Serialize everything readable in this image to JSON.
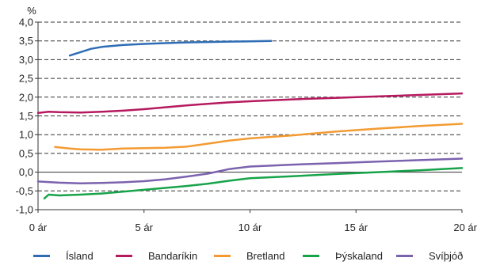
{
  "chart_data": {
    "type": "line",
    "y_unit_label": "%",
    "xlim": [
      0,
      20
    ],
    "ylim": [
      -1.0,
      4.0
    ],
    "x_ticks": [
      {
        "value": 0,
        "label": "0 ár"
      },
      {
        "value": 5,
        "label": "5 ár"
      },
      {
        "value": 10,
        "label": "10 ár"
      },
      {
        "value": 15,
        "label": "15 ár"
      },
      {
        "value": 20,
        "label": "20 ár"
      }
    ],
    "y_ticks": [
      {
        "value": -1.0,
        "label": "-1,0"
      },
      {
        "value": -0.5,
        "label": "-0,5"
      },
      {
        "value": 0.0,
        "label": "0,0"
      },
      {
        "value": 0.5,
        "label": "0,5"
      },
      {
        "value": 1.0,
        "label": "1,0"
      },
      {
        "value": 1.5,
        "label": "1,5"
      },
      {
        "value": 2.0,
        "label": "2,0"
      },
      {
        "value": 2.5,
        "label": "2,5"
      },
      {
        "value": 3.0,
        "label": "3,0"
      },
      {
        "value": 3.5,
        "label": "3,5"
      },
      {
        "value": 4.0,
        "label": "4,0"
      }
    ],
    "grid": "horizontal dashed",
    "legend_position": "bottom",
    "series": [
      {
        "name": "Ísland",
        "color": "#2e6db5",
        "points": [
          [
            1.5,
            3.11
          ],
          [
            2.0,
            3.2
          ],
          [
            2.5,
            3.29
          ],
          [
            3.0,
            3.34
          ],
          [
            4.0,
            3.39
          ],
          [
            5.0,
            3.42
          ],
          [
            6.0,
            3.44
          ],
          [
            7.0,
            3.46
          ],
          [
            8.0,
            3.47
          ],
          [
            9.0,
            3.48
          ],
          [
            10.0,
            3.49
          ],
          [
            11.0,
            3.5
          ]
        ]
      },
      {
        "name": "Bandaríkin",
        "color": "#b5195e",
        "points": [
          [
            0.0,
            1.58
          ],
          [
            0.5,
            1.61
          ],
          [
            1.0,
            1.6
          ],
          [
            2.0,
            1.59
          ],
          [
            3.0,
            1.61
          ],
          [
            4.0,
            1.64
          ],
          [
            5.0,
            1.68
          ],
          [
            6.0,
            1.73
          ],
          [
            7.0,
            1.78
          ],
          [
            8.0,
            1.82
          ],
          [
            9.0,
            1.86
          ],
          [
            10.0,
            1.89
          ],
          [
            12.0,
            1.94
          ],
          [
            14.0,
            1.98
          ],
          [
            16.0,
            2.02
          ],
          [
            18.0,
            2.06
          ],
          [
            20.0,
            2.1
          ]
        ]
      },
      {
        "name": "Bretland",
        "color": "#f39b32",
        "points": [
          [
            0.8,
            0.67
          ],
          [
            1.5,
            0.63
          ],
          [
            2.0,
            0.61
          ],
          [
            3.0,
            0.6
          ],
          [
            4.0,
            0.63
          ],
          [
            5.0,
            0.64
          ],
          [
            6.0,
            0.65
          ],
          [
            7.0,
            0.68
          ],
          [
            8.0,
            0.76
          ],
          [
            9.0,
            0.84
          ],
          [
            10.0,
            0.9
          ],
          [
            12.0,
            0.98
          ],
          [
            14.0,
            1.08
          ],
          [
            16.0,
            1.16
          ],
          [
            18.0,
            1.23
          ],
          [
            20.0,
            1.29
          ]
        ]
      },
      {
        "name": "Þýskaland",
        "color": "#17a34a",
        "points": [
          [
            0.3,
            -0.7
          ],
          [
            0.5,
            -0.6
          ],
          [
            1.0,
            -0.62
          ],
          [
            2.0,
            -0.6
          ],
          [
            3.0,
            -0.57
          ],
          [
            4.0,
            -0.52
          ],
          [
            5.0,
            -0.47
          ],
          [
            6.0,
            -0.42
          ],
          [
            7.0,
            -0.37
          ],
          [
            8.0,
            -0.31
          ],
          [
            9.0,
            -0.23
          ],
          [
            10.0,
            -0.16
          ],
          [
            12.0,
            -0.11
          ],
          [
            14.0,
            -0.05
          ],
          [
            16.0,
            0.0
          ],
          [
            18.0,
            0.05
          ],
          [
            20.0,
            0.11
          ]
        ]
      },
      {
        "name": "Svíþjóð",
        "color": "#7b62ae",
        "points": [
          [
            0.0,
            -0.25
          ],
          [
            1.0,
            -0.28
          ],
          [
            2.0,
            -0.3
          ],
          [
            3.0,
            -0.29
          ],
          [
            4.0,
            -0.27
          ],
          [
            5.0,
            -0.24
          ],
          [
            6.0,
            -0.19
          ],
          [
            7.0,
            -0.12
          ],
          [
            8.0,
            -0.04
          ],
          [
            9.0,
            0.08
          ],
          [
            10.0,
            0.15
          ],
          [
            12.0,
            0.2
          ],
          [
            14.0,
            0.24
          ],
          [
            16.0,
            0.28
          ],
          [
            18.0,
            0.32
          ],
          [
            20.0,
            0.36
          ]
        ]
      }
    ]
  }
}
